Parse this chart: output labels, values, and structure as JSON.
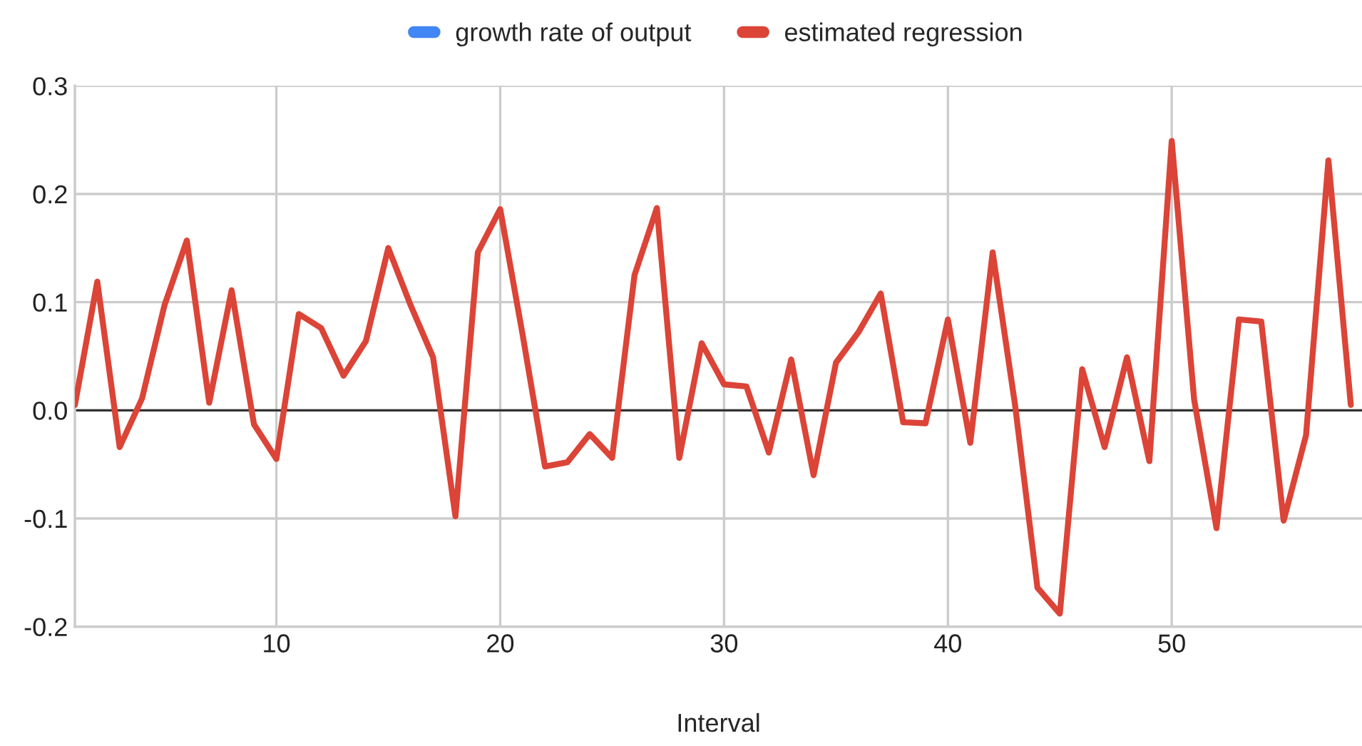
{
  "chart_data": {
    "type": "line",
    "xlabel": "Interval",
    "legend": "top",
    "grid": true,
    "line_style": "solid",
    "marker": "none",
    "x": [
      1,
      2,
      3,
      4,
      5,
      6,
      7,
      8,
      9,
      10,
      11,
      12,
      13,
      14,
      15,
      16,
      17,
      18,
      19,
      20,
      21,
      22,
      23,
      24,
      25,
      26,
      27,
      28,
      29,
      30,
      31,
      32,
      33,
      34,
      35,
      36,
      37,
      38,
      39,
      40,
      41,
      42,
      43,
      44,
      45,
      46,
      47,
      48,
      49,
      50,
      51,
      52,
      53,
      54,
      55,
      56,
      57,
      58
    ],
    "xlim": [
      1,
      58.5
    ],
    "xticks": [
      10,
      20,
      30,
      40,
      50
    ],
    "ylim": [
      -0.2,
      0.3
    ],
    "yticks": [
      {
        "value": -0.2,
        "label": "-0.2"
      },
      {
        "value": -0.1,
        "label": "-0.1"
      },
      {
        "value": 0,
        "label": "0.0"
      },
      {
        "value": 0.1,
        "label": "0.1"
      },
      {
        "value": 0.2,
        "label": "0.2"
      },
      {
        "value": 0.3,
        "label": "0.3"
      }
    ],
    "ref_lines": [
      {
        "axis": "y",
        "value": 0,
        "color": "#333333"
      }
    ],
    "series": [
      {
        "name": "growth rate of output",
        "color": "#4285f4",
        "values": [
          null,
          null,
          null,
          null,
          null,
          null,
          null,
          null,
          null,
          null,
          null,
          null,
          null,
          null,
          null,
          null,
          null,
          null,
          null,
          null,
          null,
          null,
          null,
          null,
          null,
          null,
          null,
          null,
          null,
          null,
          null,
          null,
          null,
          null,
          null,
          null,
          null,
          null,
          null,
          null,
          null,
          null,
          null,
          null,
          null,
          null,
          null,
          null,
          null,
          null,
          null,
          null,
          null,
          null,
          null,
          null,
          null,
          null
        ]
      },
      {
        "name": "estimated regression",
        "color": "#db4437",
        "values": [
          0.005,
          0.119,
          -0.034,
          0.011,
          0.097,
          0.157,
          0.007,
          0.111,
          -0.013,
          -0.045,
          0.089,
          0.076,
          0.032,
          0.064,
          0.15,
          0.097,
          0.049,
          -0.098,
          0.146,
          0.186,
          0.07,
          -0.052,
          -0.048,
          -0.022,
          -0.044,
          0.125,
          0.187,
          -0.044,
          0.062,
          0.024,
          0.022,
          -0.039,
          0.047,
          -0.06,
          0.044,
          0.072,
          0.108,
          -0.011,
          -0.012,
          0.084,
          -0.03,
          0.146,
          0.005,
          -0.164,
          -0.188,
          0.038,
          -0.034,
          0.049,
          -0.047,
          0.249,
          0.01,
          -0.109,
          0.084,
          0.082,
          -0.102,
          -0.023,
          0.231,
          0.005
        ]
      }
    ]
  }
}
